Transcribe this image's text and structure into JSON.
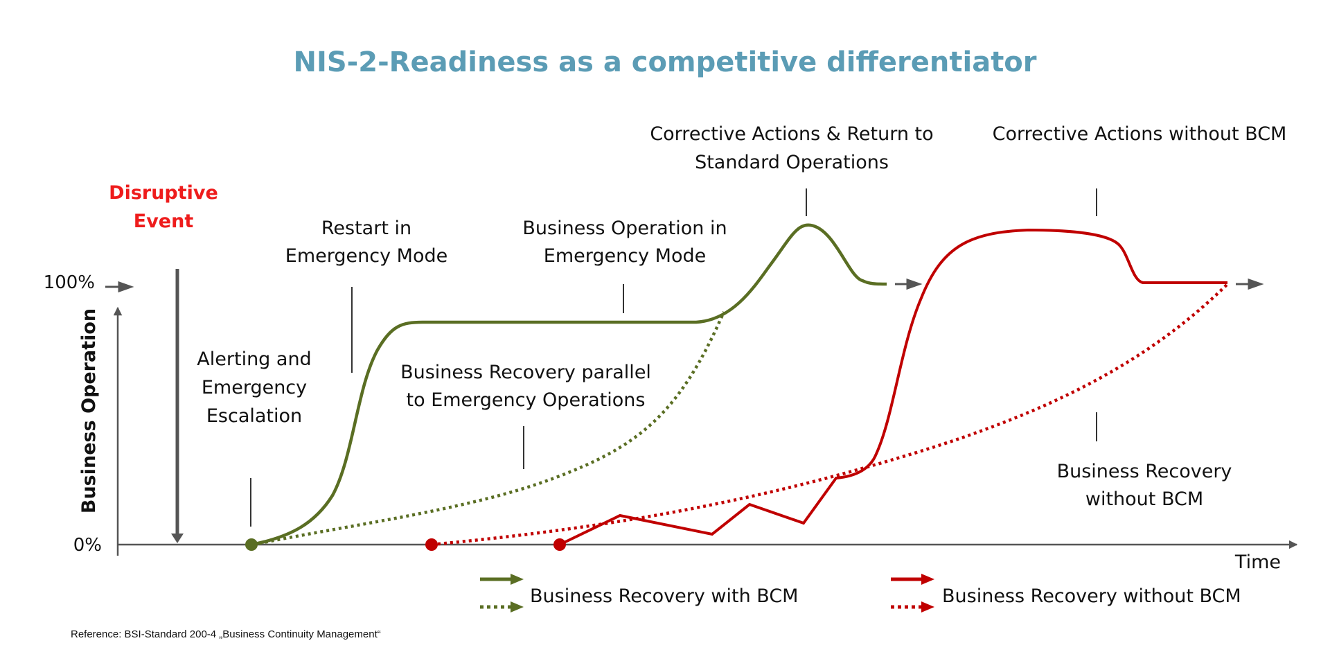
{
  "title": "NIS-2-Readiness as a competitive differentiator",
  "axis": {
    "y_label": "Business Operation",
    "y_top": "100%",
    "y_bottom": "0%",
    "x_label": "Time"
  },
  "event": {
    "line1": "Disruptive",
    "line2": "Event"
  },
  "annotations": {
    "alerting": [
      "Alerting and",
      "Emergency",
      "Escalation"
    ],
    "restart": [
      "Restart in",
      "Emergency Mode"
    ],
    "business_op": [
      "Business Operation in",
      "Emergency Mode"
    ],
    "recovery_parallel": [
      "Business Recovery parallel",
      "to Emergency Operations"
    ],
    "corrective_with": [
      "Corrective Actions & Return to",
      "Standard Operations"
    ],
    "corrective_without": [
      "Corrective Actions without BCM"
    ],
    "recovery_without": [
      "Business Recovery",
      "without BCM"
    ]
  },
  "legend": {
    "with_bcm": "Business Recovery with BCM",
    "without_bcm": "Business Recovery without BCM"
  },
  "reference": "Reference: BSI-Standard 200-4 „Business Continuity Management“",
  "colors": {
    "title": "#5b9cb5",
    "green": "#5a6e23",
    "red": "#c00000",
    "event": "#ee1c1c",
    "axis": "#555555"
  }
}
